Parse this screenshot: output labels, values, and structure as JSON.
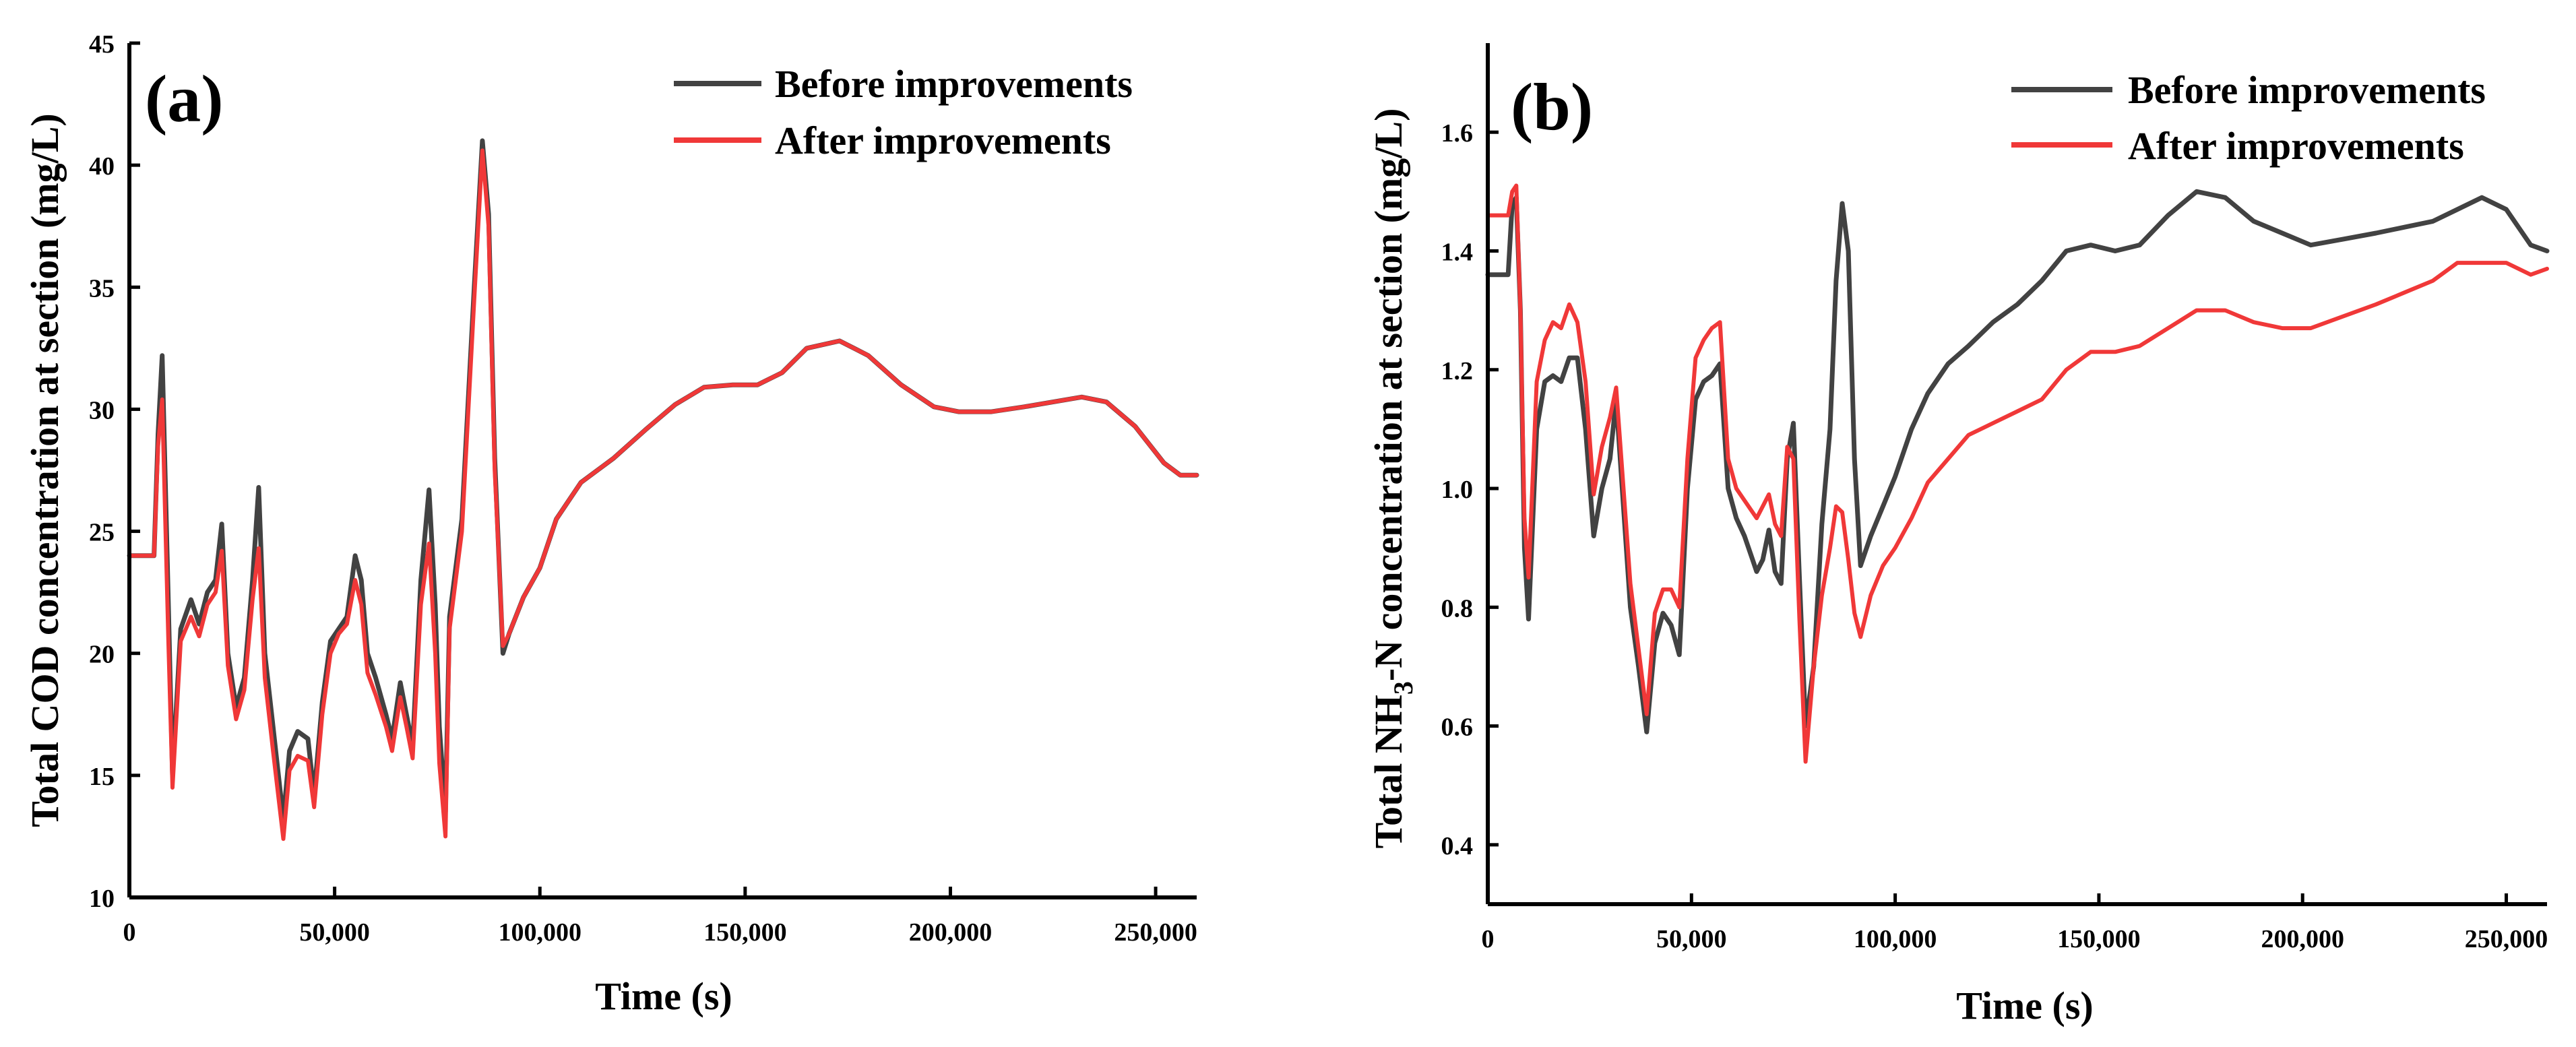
{
  "colors": {
    "before": "#424242",
    "after": "#F03838"
  },
  "chart_data": [
    {
      "type": "line",
      "panel_label": "(a)",
      "xlabel": "Time (s)",
      "ylabel": "Total COD concentration at section (mg/L)",
      "xlim": [
        0,
        260000
      ],
      "ylim": [
        10,
        45
      ],
      "xticks": [
        0,
        50000,
        100000,
        150000,
        200000,
        250000
      ],
      "xtick_labels": [
        "0",
        "50,000",
        "100,000",
        "150,000",
        "200,000",
        "250,000"
      ],
      "yticks": [
        10,
        15,
        20,
        25,
        30,
        35,
        40,
        45
      ],
      "ytick_labels": [
        "10",
        "15",
        "20",
        "25",
        "30",
        "35",
        "40",
        "45"
      ],
      "legend_position": "top-right",
      "series": [
        {
          "name": "Before improvements",
          "x": [
            0,
            6000,
            7000,
            8000,
            9500,
            10500,
            12500,
            15000,
            17000,
            19000,
            21000,
            22500,
            24000,
            26000,
            28000,
            30000,
            31500,
            33000,
            35000,
            37500,
            39000,
            41000,
            43500,
            45000,
            47000,
            49000,
            51000,
            53000,
            55000,
            56500,
            58000,
            60000,
            62500,
            64000,
            66000,
            67500,
            69000,
            71000,
            73000,
            74500,
            75500,
            77000,
            78000,
            81000,
            84000,
            86000,
            87500,
            89000,
            91000,
            92500,
            96000,
            100000,
            104000,
            110000,
            118000,
            126000,
            133000,
            140000,
            147000,
            153000,
            159000,
            165000,
            173000,
            180000,
            188000,
            196000,
            202000,
            210000,
            218000,
            225000,
            232000,
            238000,
            245000,
            252000,
            256000,
            260000
          ],
          "values": [
            24,
            24,
            29,
            32.2,
            22,
            15,
            21,
            22.2,
            21.2,
            22.5,
            23,
            25.3,
            20,
            17.8,
            19,
            23,
            26.8,
            20,
            17,
            13.2,
            16,
            16.8,
            16.5,
            14.2,
            18,
            20.5,
            21,
            21.5,
            24,
            23,
            20,
            19,
            17.5,
            16.5,
            18.8,
            17.5,
            16.2,
            23,
            26.7,
            22,
            17,
            13.5,
            21.5,
            25.5,
            35,
            41,
            38,
            28,
            20,
            20.8,
            22.3,
            23.5,
            25.5,
            27,
            28,
            29.2,
            30.2,
            30.9,
            31,
            31,
            31.5,
            32.5,
            32.8,
            32.2,
            31,
            30.1,
            29.9,
            29.9,
            30.1,
            30.3,
            30.5,
            30.3,
            29.3,
            27.8,
            27.3,
            27.3
          ]
        },
        {
          "name": "After improvements",
          "x": [
            0,
            6000,
            7000,
            8000,
            9500,
            10500,
            12500,
            15000,
            17000,
            19000,
            21000,
            22500,
            24000,
            26000,
            28000,
            30000,
            31500,
            33000,
            35000,
            37500,
            39000,
            41000,
            43500,
            45000,
            47000,
            49000,
            51000,
            53000,
            55000,
            56500,
            58000,
            60000,
            62500,
            64000,
            66000,
            67500,
            69000,
            71000,
            73000,
            74500,
            75500,
            77000,
            78000,
            81000,
            84000,
            86000,
            87500,
            89000,
            91000,
            92500,
            96000,
            100000,
            104000,
            110000,
            118000,
            126000,
            133000,
            140000,
            147000,
            153000,
            159000,
            165000,
            173000,
            180000,
            188000,
            196000,
            202000,
            210000,
            218000,
            225000,
            232000,
            238000,
            245000,
            252000,
            256000,
            260000
          ],
          "values": [
            24,
            24,
            28.5,
            30.4,
            20.5,
            14.5,
            20.5,
            21.5,
            20.7,
            22,
            22.5,
            24.2,
            19.5,
            17.3,
            18.5,
            22.2,
            24.3,
            19,
            16,
            12.4,
            15.2,
            15.8,
            15.6,
            13.7,
            17.5,
            20,
            20.8,
            21.2,
            23,
            22,
            19.2,
            18.3,
            17,
            16,
            18.2,
            17,
            15.7,
            22,
            24.5,
            20,
            15.5,
            12.5,
            21,
            25,
            34.5,
            40.6,
            37.5,
            27.5,
            20.3,
            20.8,
            22.3,
            23.5,
            25.5,
            27,
            28,
            29.2,
            30.2,
            30.9,
            31,
            31,
            31.5,
            32.5,
            32.8,
            32.2,
            31,
            30.1,
            29.9,
            29.9,
            30.1,
            30.3,
            30.5,
            30.3,
            29.3,
            27.8,
            27.3,
            27.3
          ]
        }
      ]
    },
    {
      "type": "line",
      "panel_label": "(b)",
      "xlabel": "Time (s)",
      "ylabel_main": "Total NH",
      "ylabel_sub": "3",
      "ylabel_rest": "-N concentration at section (mg/L)",
      "xlim": [
        0,
        260000
      ],
      "ylim": [
        0.3,
        1.75
      ],
      "xticks": [
        0,
        50000,
        100000,
        150000,
        200000,
        250000
      ],
      "xtick_labels": [
        "0",
        "50,000",
        "100,000",
        "150,000",
        "200,000",
        "250,000"
      ],
      "yticks": [
        0.4,
        0.6,
        0.8,
        1.0,
        1.2,
        1.4,
        1.6
      ],
      "ytick_labels": [
        "0.4",
        "0.6",
        "0.8",
        "1.0",
        "1.2",
        "1.4",
        "1.6"
      ],
      "legend_position": "top-right",
      "series": [
        {
          "name": "Before improvements",
          "x": [
            0,
            5000,
            6000,
            7000,
            8000,
            9000,
            10000,
            12000,
            14000,
            16000,
            18000,
            20000,
            22000,
            24000,
            26000,
            28000,
            30000,
            31500,
            33000,
            35000,
            37000,
            39000,
            41000,
            43000,
            45000,
            47000,
            49000,
            51000,
            53000,
            55000,
            57000,
            59000,
            61000,
            63000,
            65000,
            66000,
            67500,
            69000,
            70500,
            72000,
            73500,
            75000,
            76500,
            78000,
            80000,
            82000,
            84000,
            85500,
            87000,
            88500,
            90000,
            91500,
            94000,
            97000,
            100000,
            104000,
            108000,
            113000,
            118000,
            124000,
            130000,
            136000,
            142000,
            148000,
            154000,
            160000,
            167000,
            174000,
            181000,
            188000,
            195000,
            202000,
            210000,
            218000,
            225000,
            232000,
            238000,
            244000,
            250000,
            256000,
            260000
          ],
          "values": [
            1.36,
            1.36,
            1.48,
            1.49,
            1.3,
            0.9,
            0.78,
            1.1,
            1.18,
            1.19,
            1.18,
            1.22,
            1.22,
            1.1,
            0.92,
            1.0,
            1.05,
            1.15,
            1.0,
            0.8,
            0.7,
            0.59,
            0.74,
            0.79,
            0.77,
            0.72,
            1.0,
            1.15,
            1.18,
            1.19,
            1.21,
            1.0,
            0.95,
            0.92,
            0.88,
            0.86,
            0.88,
            0.93,
            0.86,
            0.84,
            1.05,
            1.11,
            0.85,
            0.6,
            0.7,
            0.94,
            1.1,
            1.35,
            1.48,
            1.4,
            1.05,
            0.87,
            0.92,
            0.97,
            1.02,
            1.1,
            1.16,
            1.21,
            1.24,
            1.28,
            1.31,
            1.35,
            1.4,
            1.41,
            1.4,
            1.41,
            1.46,
            1.5,
            1.49,
            1.45,
            1.43,
            1.41,
            1.42,
            1.43,
            1.44,
            1.45,
            1.47,
            1.49,
            1.47,
            1.41,
            1.4
          ]
        },
        {
          "name": "After improvements",
          "x": [
            0,
            5000,
            6000,
            7000,
            8000,
            9000,
            10000,
            12000,
            14000,
            16000,
            18000,
            20000,
            22000,
            24000,
            26000,
            28000,
            30000,
            31500,
            33000,
            35000,
            37000,
            39000,
            41000,
            43000,
            45000,
            47000,
            49000,
            51000,
            53000,
            55000,
            57000,
            59000,
            61000,
            63000,
            65000,
            66000,
            67500,
            69000,
            70500,
            72000,
            73500,
            75000,
            76500,
            78000,
            80000,
            82000,
            84000,
            85500,
            87000,
            88500,
            90000,
            91500,
            94000,
            97000,
            100000,
            104000,
            108000,
            113000,
            118000,
            124000,
            130000,
            136000,
            142000,
            148000,
            154000,
            160000,
            167000,
            174000,
            181000,
            188000,
            195000,
            202000,
            210000,
            218000,
            225000,
            232000,
            238000,
            244000,
            250000,
            256000,
            260000
          ],
          "values": [
            1.46,
            1.46,
            1.5,
            1.51,
            1.3,
            0.95,
            0.85,
            1.18,
            1.25,
            1.28,
            1.27,
            1.31,
            1.28,
            1.18,
            0.99,
            1.07,
            1.12,
            1.17,
            1.03,
            0.84,
            0.73,
            0.62,
            0.79,
            0.83,
            0.83,
            0.8,
            1.05,
            1.22,
            1.25,
            1.27,
            1.28,
            1.05,
            1.0,
            0.98,
            0.96,
            0.95,
            0.97,
            0.99,
            0.94,
            0.92,
            1.07,
            1.05,
            0.78,
            0.54,
            0.7,
            0.82,
            0.9,
            0.97,
            0.96,
            0.88,
            0.79,
            0.75,
            0.82,
            0.87,
            0.9,
            0.95,
            1.01,
            1.05,
            1.09,
            1.11,
            1.13,
            1.15,
            1.2,
            1.23,
            1.23,
            1.24,
            1.27,
            1.3,
            1.3,
            1.28,
            1.27,
            1.27,
            1.29,
            1.31,
            1.33,
            1.35,
            1.38,
            1.38,
            1.38,
            1.36,
            1.37
          ]
        }
      ]
    }
  ]
}
